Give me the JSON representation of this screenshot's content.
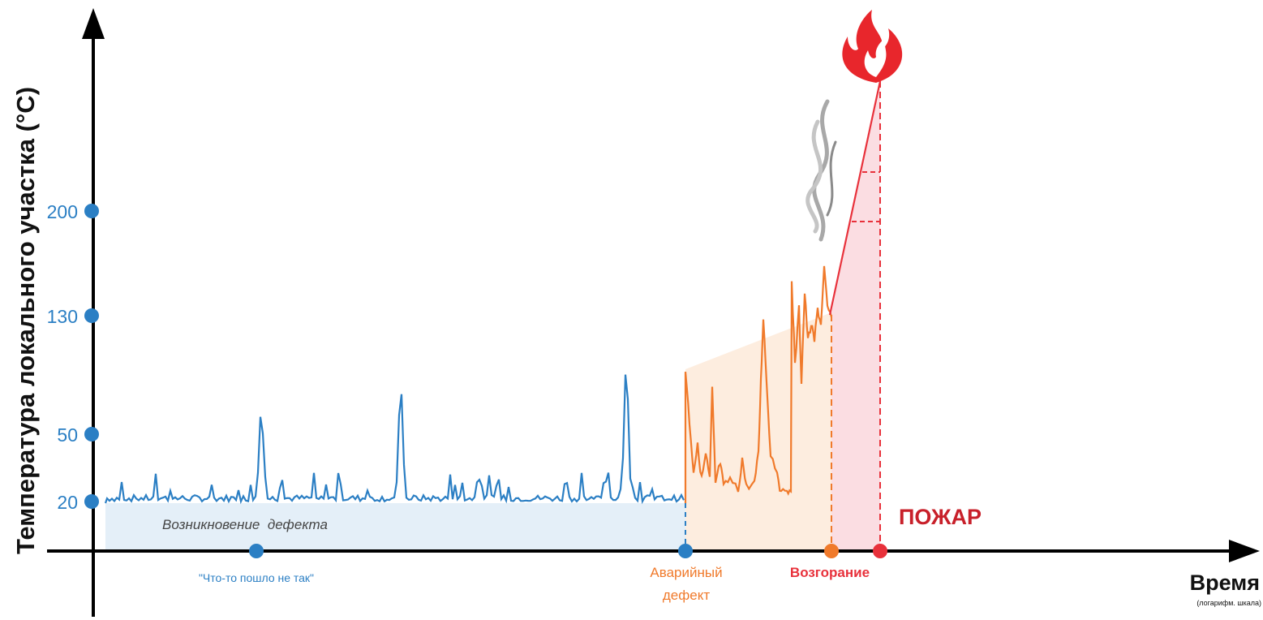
{
  "axis_title": "Температура локального участка (°C)",
  "y_labels": [
    "20",
    "50",
    "130",
    "200"
  ],
  "x_title": "Время",
  "x_subtitle": "(логарифм. шкала)",
  "annotations": {
    "defect_onset": "Возникновение  дефекта",
    "something_wrong": "\"Что-то пошло не так\"",
    "emergency_defect": [
      "Аварийный",
      "дефект"
    ],
    "ignition": "Возгорание",
    "fire": "ПОЖАР"
  }
}
